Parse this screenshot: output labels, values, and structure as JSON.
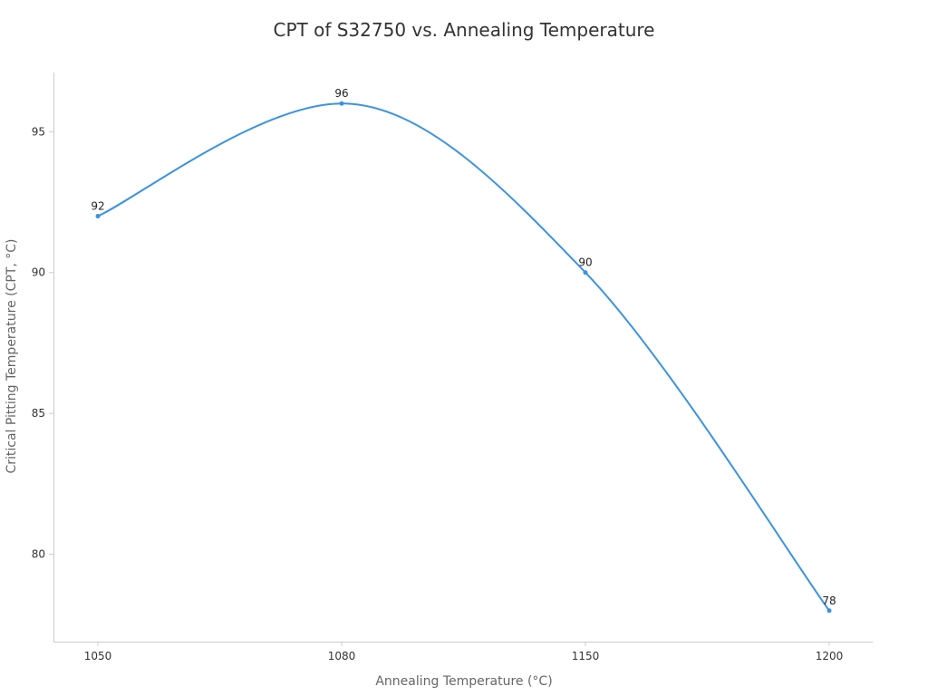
{
  "chart_data": {
    "type": "line",
    "title": "CPT of S32750 vs. Annealing Temperature",
    "xlabel": "Annealing Temperature (°C)",
    "ylabel": "Critical Pitting Temperature (CPT, °C)",
    "categories": [
      "1050",
      "1080",
      "1150",
      "1200"
    ],
    "series": [
      {
        "values": [
          92,
          96,
          90,
          78
        ],
        "color": "#3b93e0"
      }
    ],
    "yticks": [
      80,
      85,
      90,
      95
    ],
    "ylim": [
      76.9,
      97.1
    ],
    "grid": false,
    "smooth": true,
    "data_labels": true
  }
}
